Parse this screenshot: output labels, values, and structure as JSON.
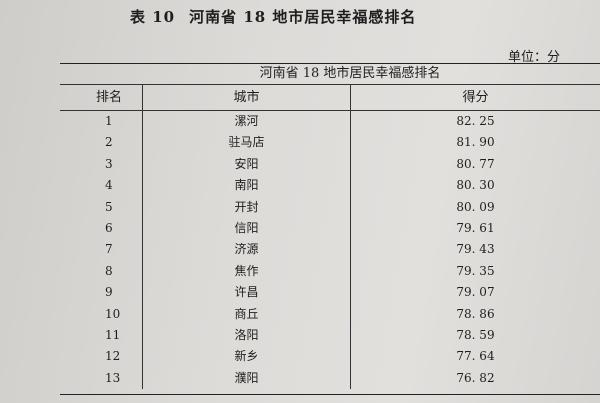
{
  "title": {
    "label": "表 10",
    "text": "河南省 18 地市居民幸福感排名"
  },
  "unit": "单位：分",
  "table": {
    "caption": "河南省 18 地市居民幸福感排名",
    "columns": [
      "排名",
      "城市",
      "得分"
    ],
    "rows": [
      [
        "1",
        "漯河",
        "82. 25"
      ],
      [
        "2",
        "驻马店",
        "81. 90"
      ],
      [
        "3",
        "安阳",
        "80. 77"
      ],
      [
        "4",
        "南阳",
        "80. 30"
      ],
      [
        "5",
        "开封",
        "80. 09"
      ],
      [
        "6",
        "信阳",
        "79. 61"
      ],
      [
        "7",
        "济源",
        "79. 43"
      ],
      [
        "8",
        "焦作",
        "79. 35"
      ],
      [
        "9",
        "许昌",
        "79. 07"
      ],
      [
        "10",
        "商丘",
        "78. 86"
      ],
      [
        "11",
        "洛阳",
        "78. 59"
      ],
      [
        "12",
        "新乡",
        "77. 64"
      ],
      [
        "13",
        "濮阳",
        "76. 82"
      ]
    ]
  }
}
